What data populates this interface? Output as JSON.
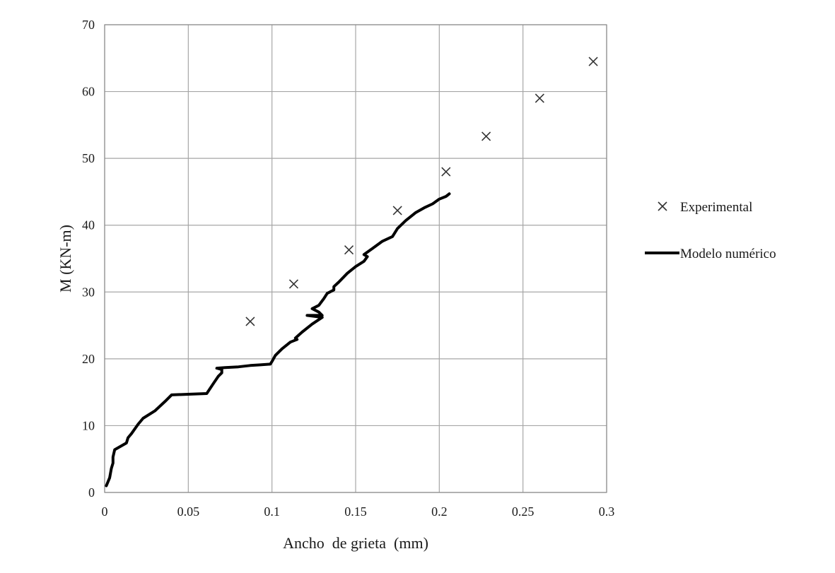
{
  "chart_data": {
    "type": "scatter",
    "xlabel": "Ancho  de grieta  (mm)",
    "ylabel": "M (KN-m)",
    "xlim": [
      0,
      0.3
    ],
    "ylim": [
      0,
      70
    ],
    "x_ticks": [
      "0",
      "0.05",
      "0.1",
      "0.15",
      "0.2",
      "0.25",
      "0.3"
    ],
    "y_ticks": [
      "0",
      "10",
      "20",
      "30",
      "40",
      "50",
      "60",
      "70"
    ],
    "x_tick_values": [
      0,
      0.05,
      0.1,
      0.15,
      0.2,
      0.25,
      0.3
    ],
    "y_tick_values": [
      0,
      10,
      20,
      30,
      40,
      50,
      60,
      70
    ],
    "grid": true,
    "legend_position": "right",
    "series": [
      {
        "name": "Experimental",
        "kind": "scatter",
        "marker": "x",
        "color": "#333333",
        "x": [
          0.087,
          0.113,
          0.146,
          0.175,
          0.204,
          0.228,
          0.26,
          0.292
        ],
        "y": [
          25.6,
          31.2,
          36.3,
          42.2,
          48.0,
          53.3,
          59.0,
          64.5
        ]
      },
      {
        "name": "Modelo numérico",
        "kind": "line",
        "color": "#000000",
        "x": [
          0.001,
          0.003,
          0.004,
          0.005,
          0.005,
          0.006,
          0.013,
          0.014,
          0.016,
          0.02,
          0.023,
          0.03,
          0.036,
          0.04,
          0.05,
          0.061,
          0.065,
          0.068,
          0.07,
          0.07,
          0.067,
          0.072,
          0.08,
          0.087,
          0.093,
          0.099,
          0.1,
          0.102,
          0.106,
          0.111,
          0.113,
          0.115,
          0.114,
          0.118,
          0.124,
          0.13,
          0.121,
          0.13,
          0.128,
          0.124,
          0.128,
          0.131,
          0.133,
          0.137,
          0.137,
          0.14,
          0.145,
          0.15,
          0.155,
          0.157,
          0.155,
          0.16,
          0.166,
          0.172,
          0.175,
          0.18,
          0.186,
          0.191,
          0.196,
          0.2,
          0.204,
          0.206
        ],
        "y": [
          1.0,
          2.2,
          3.6,
          4.4,
          5.3,
          6.4,
          7.4,
          8.2,
          8.8,
          10.2,
          11.1,
          12.2,
          13.6,
          14.6,
          14.7,
          14.8,
          16.3,
          17.4,
          17.9,
          18.4,
          18.6,
          18.7,
          18.8,
          19.0,
          19.1,
          19.2,
          19.6,
          20.5,
          21.5,
          22.5,
          22.7,
          22.9,
          23.1,
          24.0,
          25.2,
          26.2,
          26.5,
          26.5,
          27.0,
          27.5,
          28.0,
          29.0,
          29.8,
          30.3,
          30.8,
          31.5,
          32.8,
          33.8,
          34.6,
          35.3,
          35.6,
          36.5,
          37.6,
          38.3,
          39.5,
          40.7,
          41.9,
          42.6,
          43.2,
          43.9,
          44.3,
          44.7
        ]
      }
    ]
  }
}
